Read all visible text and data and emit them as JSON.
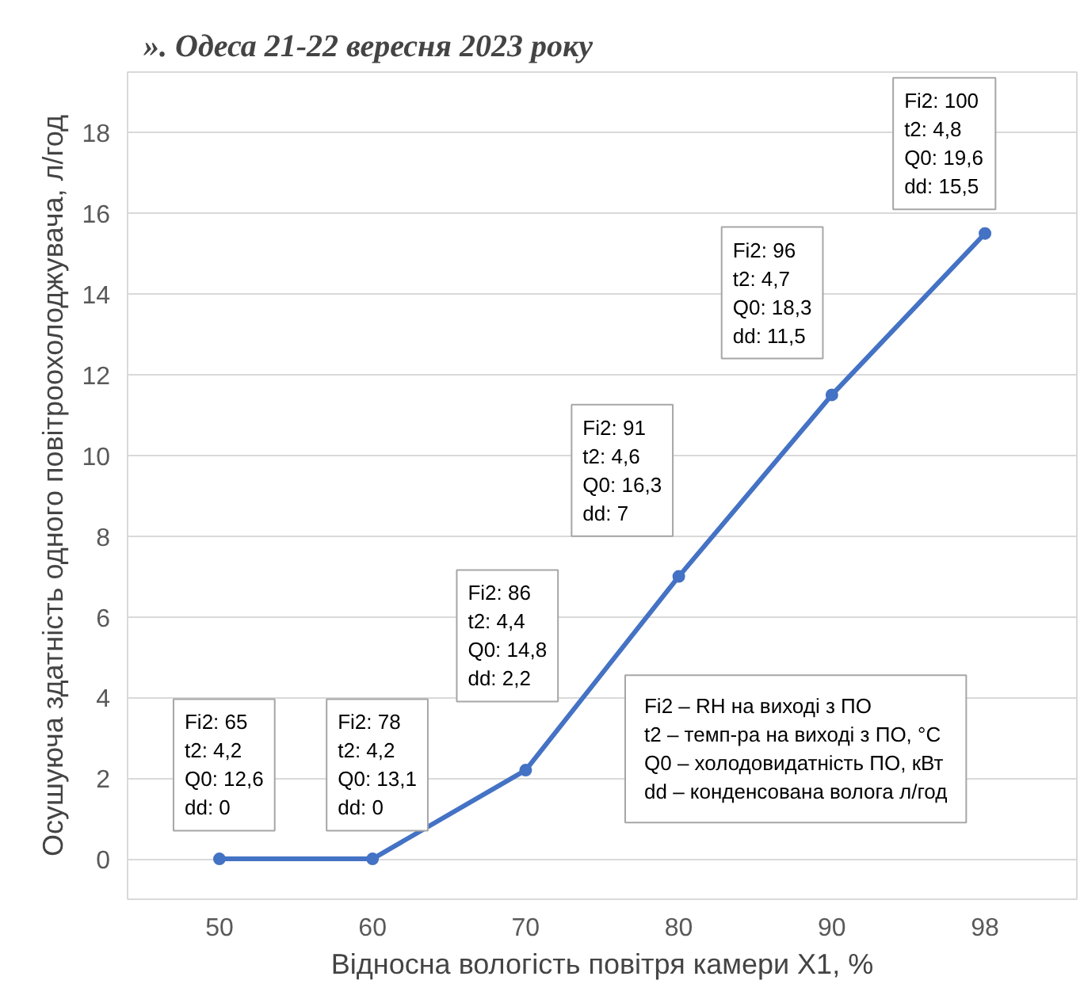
{
  "chart_data": {
    "type": "line",
    "title": "». Одеса 21-22 вересня 2023 року",
    "xlabel": "Відносна вологість повітря камери X1, %",
    "ylabel": "Осушуюча здатність одного повітроохолоджувача, л/год",
    "categories": [
      "50",
      "60",
      "70",
      "80",
      "90",
      "98"
    ],
    "series": [
      {
        "color": "#4472c4",
        "values": [
          0,
          0,
          2.2,
          7,
          11.5,
          15.5
        ]
      }
    ],
    "marker": "circle",
    "grid": "y",
    "ylim": [
      -1,
      19.5
    ],
    "yticks": [
      0,
      2,
      4,
      6,
      8,
      10,
      12,
      14,
      16,
      18
    ],
    "annotations": [
      "Fi2:  65\nt2:  4,2\nQ0: 12,6\ndd:  0",
      "Fi2:  78\nt2:  4,2\nQ0: 13,1\ndd:  0",
      "Fi2:  86\nt2:  4,4\nQ0: 14,8\ndd:  2,2",
      "Fi2:  91\nt2:  4,6\nQ0: 16,3\ndd:  7",
      "Fi2:  96\nt2:  4,7\nQ0: 18,3\ndd:  11,5",
      "Fi2:  100\nt2:  4,8\nQ0: 19,6\ndd:  15,5",
      "Fi2 – RH на виході з ПО\nt2 – темп-ра на виході з ПО, °C\nQ0 – холодовидатність ПО, кВт\ndd – конденсована волога л/год"
    ]
  }
}
